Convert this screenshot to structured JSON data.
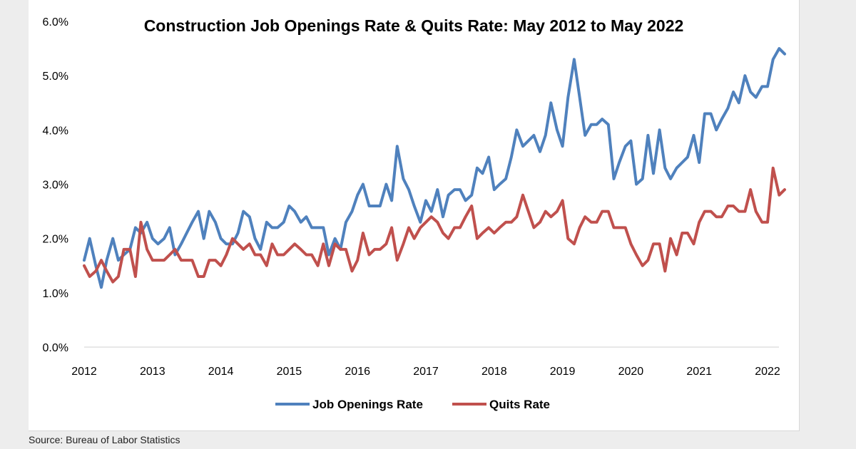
{
  "source_note": "Source: Bureau of Labor Statistics",
  "chart_data": {
    "type": "line",
    "title": "Construction Job Openings Rate & Quits Rate: May 2012 to May 2022",
    "xlabel": "",
    "ylabel": "",
    "x_range": [
      2012,
      2022.167
    ],
    "ylim": [
      0,
      6
    ],
    "y_ticks": [
      0,
      1,
      2,
      3,
      4,
      5,
      6
    ],
    "y_tick_labels": [
      "0.0%",
      "1.0%",
      "2.0%",
      "3.0%",
      "4.0%",
      "5.0%",
      "6.0%"
    ],
    "x_ticks": [
      2012,
      2013,
      2014,
      2015,
      2016,
      2017,
      2018,
      2019,
      2020,
      2021,
      2022
    ],
    "x_tick_labels": [
      "2012",
      "2013",
      "2014",
      "2015",
      "2016",
      "2017",
      "2018",
      "2019",
      "2020",
      "2021",
      "2022"
    ],
    "grid": false,
    "legend_position": "bottom",
    "series": [
      {
        "name": "Job Openings Rate",
        "color": "#4f81bd",
        "points": [
          [
            2012.0,
            1.6
          ],
          [
            2012.08,
            2.0
          ],
          [
            2012.17,
            1.5
          ],
          [
            2012.25,
            1.1
          ],
          [
            2012.33,
            1.6
          ],
          [
            2012.42,
            2.0
          ],
          [
            2012.5,
            1.6
          ],
          [
            2012.58,
            1.7
          ],
          [
            2012.67,
            1.8
          ],
          [
            2012.75,
            2.2
          ],
          [
            2012.83,
            2.1
          ],
          [
            2012.92,
            2.3
          ],
          [
            2013.0,
            2.0
          ],
          [
            2013.08,
            1.9
          ],
          [
            2013.17,
            2.0
          ],
          [
            2013.25,
            2.2
          ],
          [
            2013.33,
            1.7
          ],
          [
            2013.42,
            1.9
          ],
          [
            2013.5,
            2.1
          ],
          [
            2013.58,
            2.3
          ],
          [
            2013.67,
            2.5
          ],
          [
            2013.75,
            2.0
          ],
          [
            2013.83,
            2.5
          ],
          [
            2013.92,
            2.3
          ],
          [
            2014.0,
            2.0
          ],
          [
            2014.08,
            1.9
          ],
          [
            2014.17,
            1.9
          ],
          [
            2014.25,
            2.1
          ],
          [
            2014.33,
            2.5
          ],
          [
            2014.42,
            2.4
          ],
          [
            2014.5,
            2.0
          ],
          [
            2014.58,
            1.8
          ],
          [
            2014.67,
            2.3
          ],
          [
            2014.75,
            2.2
          ],
          [
            2014.83,
            2.2
          ],
          [
            2014.92,
            2.3
          ],
          [
            2015.0,
            2.6
          ],
          [
            2015.08,
            2.5
          ],
          [
            2015.17,
            2.3
          ],
          [
            2015.25,
            2.4
          ],
          [
            2015.33,
            2.2
          ],
          [
            2015.42,
            2.2
          ],
          [
            2015.5,
            2.2
          ],
          [
            2015.58,
            1.7
          ],
          [
            2015.67,
            2.0
          ],
          [
            2015.75,
            1.8
          ],
          [
            2015.83,
            2.3
          ],
          [
            2015.92,
            2.5
          ],
          [
            2016.0,
            2.8
          ],
          [
            2016.08,
            3.0
          ],
          [
            2016.17,
            2.6
          ],
          [
            2016.25,
            2.6
          ],
          [
            2016.33,
            2.6
          ],
          [
            2016.42,
            3.0
          ],
          [
            2016.5,
            2.7
          ],
          [
            2016.58,
            3.7
          ],
          [
            2016.67,
            3.1
          ],
          [
            2016.75,
            2.9
          ],
          [
            2016.83,
            2.6
          ],
          [
            2016.92,
            2.3
          ],
          [
            2017.0,
            2.7
          ],
          [
            2017.08,
            2.5
          ],
          [
            2017.17,
            2.9
          ],
          [
            2017.25,
            2.4
          ],
          [
            2017.33,
            2.8
          ],
          [
            2017.42,
            2.9
          ],
          [
            2017.5,
            2.9
          ],
          [
            2017.58,
            2.7
          ],
          [
            2017.67,
            2.8
          ],
          [
            2017.75,
            3.3
          ],
          [
            2017.83,
            3.2
          ],
          [
            2017.92,
            3.5
          ],
          [
            2018.0,
            2.9
          ],
          [
            2018.08,
            3.0
          ],
          [
            2018.17,
            3.1
          ],
          [
            2018.25,
            3.5
          ],
          [
            2018.33,
            4.0
          ],
          [
            2018.42,
            3.7
          ],
          [
            2018.5,
            3.8
          ],
          [
            2018.58,
            3.9
          ],
          [
            2018.67,
            3.6
          ],
          [
            2018.75,
            3.9
          ],
          [
            2018.83,
            4.5
          ],
          [
            2018.92,
            4.0
          ],
          [
            2019.0,
            3.7
          ],
          [
            2019.08,
            4.6
          ],
          [
            2019.17,
            5.3
          ],
          [
            2019.25,
            4.6
          ],
          [
            2019.33,
            3.9
          ],
          [
            2019.42,
            4.1
          ],
          [
            2019.5,
            4.1
          ],
          [
            2019.58,
            4.2
          ],
          [
            2019.67,
            4.1
          ],
          [
            2019.75,
            3.1
          ],
          [
            2019.83,
            3.4
          ],
          [
            2019.92,
            3.7
          ],
          [
            2020.0,
            3.8
          ],
          [
            2020.08,
            3.0
          ],
          [
            2020.17,
            3.1
          ],
          [
            2020.25,
            3.9
          ],
          [
            2020.33,
            3.2
          ],
          [
            2020.42,
            4.0
          ],
          [
            2020.5,
            3.3
          ],
          [
            2020.58,
            3.1
          ],
          [
            2020.67,
            3.3
          ],
          [
            2020.75,
            3.4
          ],
          [
            2020.83,
            3.5
          ],
          [
            2020.92,
            3.9
          ],
          [
            2021.0,
            3.4
          ],
          [
            2021.08,
            4.3
          ],
          [
            2021.17,
            4.3
          ],
          [
            2021.25,
            4.0
          ],
          [
            2021.33,
            4.2
          ],
          [
            2021.42,
            4.4
          ],
          [
            2021.5,
            4.7
          ],
          [
            2021.58,
            4.5
          ],
          [
            2021.67,
            5.0
          ],
          [
            2021.75,
            4.7
          ],
          [
            2021.83,
            4.6
          ],
          [
            2021.92,
            4.8
          ],
          [
            2022.0,
            4.8
          ],
          [
            2022.08,
            5.3
          ],
          [
            2022.17,
            5.5
          ],
          [
            2022.25,
            5.4
          ]
        ]
      },
      {
        "name": "Quits Rate",
        "color": "#c0504d",
        "points": [
          [
            2012.0,
            1.5
          ],
          [
            2012.08,
            1.3
          ],
          [
            2012.17,
            1.4
          ],
          [
            2012.25,
            1.6
          ],
          [
            2012.33,
            1.4
          ],
          [
            2012.42,
            1.2
          ],
          [
            2012.5,
            1.3
          ],
          [
            2012.58,
            1.8
          ],
          [
            2012.67,
            1.8
          ],
          [
            2012.75,
            1.3
          ],
          [
            2012.83,
            2.3
          ],
          [
            2012.92,
            1.8
          ],
          [
            2013.0,
            1.6
          ],
          [
            2013.08,
            1.6
          ],
          [
            2013.17,
            1.6
          ],
          [
            2013.25,
            1.7
          ],
          [
            2013.33,
            1.8
          ],
          [
            2013.42,
            1.6
          ],
          [
            2013.5,
            1.6
          ],
          [
            2013.58,
            1.6
          ],
          [
            2013.67,
            1.3
          ],
          [
            2013.75,
            1.3
          ],
          [
            2013.83,
            1.6
          ],
          [
            2013.92,
            1.6
          ],
          [
            2014.0,
            1.5
          ],
          [
            2014.08,
            1.7
          ],
          [
            2014.17,
            2.0
          ],
          [
            2014.25,
            1.9
          ],
          [
            2014.33,
            1.8
          ],
          [
            2014.42,
            1.9
          ],
          [
            2014.5,
            1.7
          ],
          [
            2014.58,
            1.7
          ],
          [
            2014.67,
            1.5
          ],
          [
            2014.75,
            1.9
          ],
          [
            2014.83,
            1.7
          ],
          [
            2014.92,
            1.7
          ],
          [
            2015.0,
            1.8
          ],
          [
            2015.08,
            1.9
          ],
          [
            2015.17,
            1.8
          ],
          [
            2015.25,
            1.7
          ],
          [
            2015.33,
            1.7
          ],
          [
            2015.42,
            1.5
          ],
          [
            2015.5,
            1.9
          ],
          [
            2015.58,
            1.5
          ],
          [
            2015.67,
            1.9
          ],
          [
            2015.75,
            1.8
          ],
          [
            2015.83,
            1.8
          ],
          [
            2015.92,
            1.4
          ],
          [
            2016.0,
            1.6
          ],
          [
            2016.08,
            2.1
          ],
          [
            2016.17,
            1.7
          ],
          [
            2016.25,
            1.8
          ],
          [
            2016.33,
            1.8
          ],
          [
            2016.42,
            1.9
          ],
          [
            2016.5,
            2.2
          ],
          [
            2016.58,
            1.6
          ],
          [
            2016.67,
            1.9
          ],
          [
            2016.75,
            2.2
          ],
          [
            2016.83,
            2.0
          ],
          [
            2016.92,
            2.2
          ],
          [
            2017.0,
            2.3
          ],
          [
            2017.08,
            2.4
          ],
          [
            2017.17,
            2.3
          ],
          [
            2017.25,
            2.1
          ],
          [
            2017.33,
            2.0
          ],
          [
            2017.42,
            2.2
          ],
          [
            2017.5,
            2.2
          ],
          [
            2017.58,
            2.4
          ],
          [
            2017.67,
            2.6
          ],
          [
            2017.75,
            2.0
          ],
          [
            2017.83,
            2.1
          ],
          [
            2017.92,
            2.2
          ],
          [
            2018.0,
            2.1
          ],
          [
            2018.08,
            2.2
          ],
          [
            2018.17,
            2.3
          ],
          [
            2018.25,
            2.3
          ],
          [
            2018.33,
            2.4
          ],
          [
            2018.42,
            2.8
          ],
          [
            2018.5,
            2.5
          ],
          [
            2018.58,
            2.2
          ],
          [
            2018.67,
            2.3
          ],
          [
            2018.75,
            2.5
          ],
          [
            2018.83,
            2.4
          ],
          [
            2018.92,
            2.5
          ],
          [
            2019.0,
            2.7
          ],
          [
            2019.08,
            2.0
          ],
          [
            2019.17,
            1.9
          ],
          [
            2019.25,
            2.2
          ],
          [
            2019.33,
            2.4
          ],
          [
            2019.42,
            2.3
          ],
          [
            2019.5,
            2.3
          ],
          [
            2019.58,
            2.5
          ],
          [
            2019.67,
            2.5
          ],
          [
            2019.75,
            2.2
          ],
          [
            2019.83,
            2.2
          ],
          [
            2019.92,
            2.2
          ],
          [
            2020.0,
            1.9
          ],
          [
            2020.08,
            1.7
          ],
          [
            2020.17,
            1.5
          ],
          [
            2020.25,
            1.6
          ],
          [
            2020.33,
            1.9
          ],
          [
            2020.42,
            1.9
          ],
          [
            2020.5,
            1.4
          ],
          [
            2020.58,
            2.0
          ],
          [
            2020.67,
            1.7
          ],
          [
            2020.75,
            2.1
          ],
          [
            2020.83,
            2.1
          ],
          [
            2020.92,
            1.9
          ],
          [
            2021.0,
            2.3
          ],
          [
            2021.08,
            2.5
          ],
          [
            2021.17,
            2.5
          ],
          [
            2021.25,
            2.4
          ],
          [
            2021.33,
            2.4
          ],
          [
            2021.42,
            2.6
          ],
          [
            2021.5,
            2.6
          ],
          [
            2021.58,
            2.5
          ],
          [
            2021.67,
            2.5
          ],
          [
            2021.75,
            2.9
          ],
          [
            2021.83,
            2.5
          ],
          [
            2021.92,
            2.3
          ],
          [
            2022.0,
            2.3
          ],
          [
            2022.08,
            3.3
          ],
          [
            2022.17,
            2.8
          ],
          [
            2022.25,
            2.9
          ]
        ]
      }
    ]
  }
}
